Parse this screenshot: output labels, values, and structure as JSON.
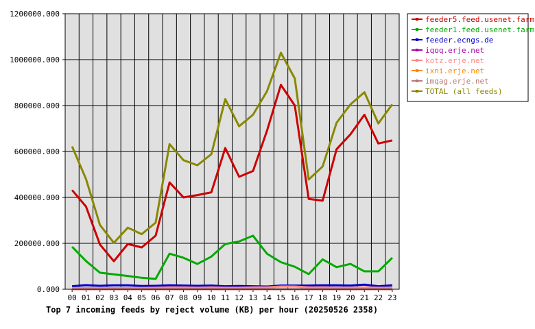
{
  "chart_data": {
    "type": "line",
    "title": "Top 7 incoming feeds by reject volume (KB) per hour (20250526 2358)",
    "categories": [
      "00",
      "01",
      "02",
      "03",
      "04",
      "05",
      "06",
      "07",
      "08",
      "09",
      "10",
      "11",
      "12",
      "13",
      "14",
      "15",
      "16",
      "17",
      "18",
      "19",
      "20",
      "21",
      "22",
      "23"
    ],
    "y_ticks": [
      "0.000",
      "200000.000",
      "400000.000",
      "600000.000",
      "800000.000",
      "1000000.000",
      "1200000.000"
    ],
    "ylim": [
      0,
      1200000
    ],
    "grid": true,
    "legend_position": "right",
    "series": [
      {
        "name": "feeder5.feed.usenet.farm",
        "color": "#cc0000",
        "values": [
          432000,
          360000,
          195000,
          122000,
          197000,
          182000,
          233000,
          465000,
          400000,
          410000,
          422000,
          615000,
          490000,
          515000,
          690000,
          890000,
          800000,
          393000,
          386000,
          610000,
          675000,
          760000,
          635000,
          648000
        ]
      },
      {
        "name": "feeder1.feed.usenet.farm",
        "color": "#00aa00",
        "values": [
          185000,
          123000,
          72000,
          65000,
          58000,
          50000,
          45000,
          155000,
          137000,
          110000,
          142000,
          197000,
          208000,
          233000,
          155000,
          118000,
          98000,
          66000,
          130000,
          96000,
          110000,
          78000,
          78000,
          137000
        ]
      },
      {
        "name": "feeder.ecngs.de",
        "color": "#0000cc",
        "values": [
          13000,
          18000,
          15000,
          17000,
          17000,
          14000,
          15000,
          17000,
          16000,
          15000,
          16000,
          13000,
          14000,
          13000,
          12000,
          16000,
          16000,
          16000,
          17000,
          17000,
          16000,
          20000,
          13000,
          17000
        ]
      },
      {
        "name": "iqoq.erje.net",
        "color": "#aa00aa",
        "values": [
          0,
          0,
          0,
          0,
          0,
          0,
          0,
          0,
          0,
          0,
          0,
          0,
          0,
          0,
          0,
          0,
          0,
          0,
          0,
          0,
          0,
          0,
          0,
          0
        ]
      },
      {
        "name": "kotz.erje.net",
        "color": "#ff8888",
        "values": [
          5000,
          5000,
          5000,
          5000,
          5000,
          6000,
          7000,
          8000,
          8000,
          7000,
          8000,
          7000,
          7000,
          8000,
          8000,
          12000,
          12000,
          8000,
          8000,
          7000,
          7000,
          8000,
          7000,
          7000
        ]
      },
      {
        "name": "ixni.erje.net",
        "color": "#ff8800",
        "values": [
          0,
          0,
          0,
          0,
          0,
          0,
          0,
          0,
          0,
          0,
          0,
          0,
          0,
          0,
          0,
          0,
          0,
          0,
          0,
          0,
          0,
          0,
          0,
          0
        ]
      },
      {
        "name": "imqag.erje.net",
        "color": "#bb7777",
        "values": [
          0,
          0,
          0,
          0,
          0,
          0,
          0,
          0,
          0,
          0,
          0,
          0,
          0,
          0,
          0,
          0,
          0,
          0,
          0,
          0,
          0,
          0,
          0,
          0
        ]
      },
      {
        "name": "TOTAL (all feeds)",
        "color": "#888800",
        "values": [
          622000,
          480000,
          280000,
          202000,
          268000,
          240000,
          290000,
          632000,
          562000,
          540000,
          588000,
          828000,
          710000,
          760000,
          862000,
          1030000,
          918000,
          478000,
          535000,
          725000,
          805000,
          858000,
          722000,
          805000
        ]
      }
    ]
  }
}
